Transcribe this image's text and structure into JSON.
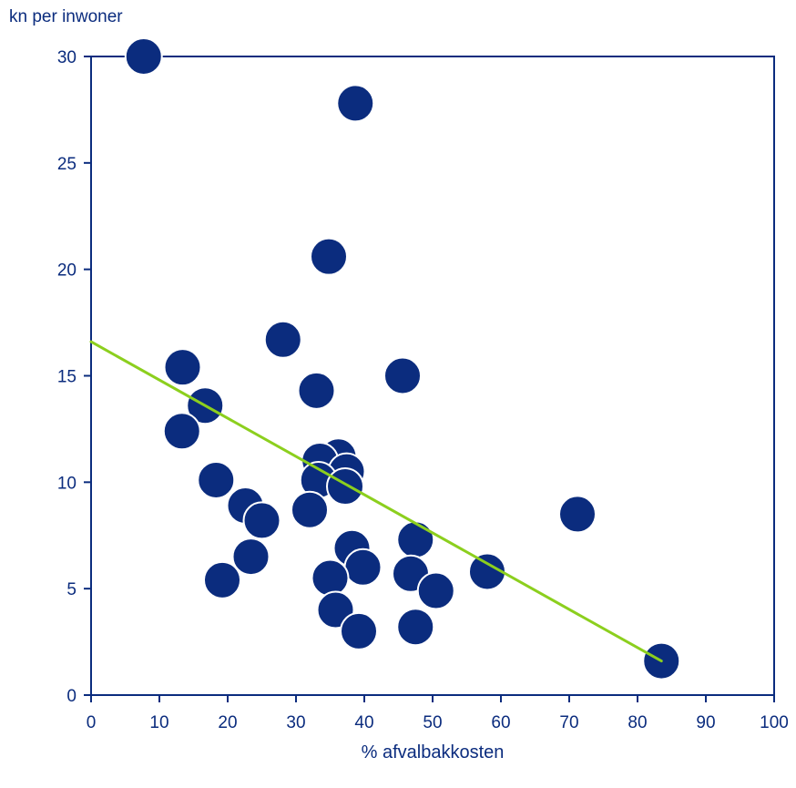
{
  "chart_data": {
    "type": "scatter",
    "title": "",
    "ylabel": "kn per inwoner",
    "xlabel": "% afvalbakkosten",
    "xlim": [
      0,
      100
    ],
    "ylim": [
      0,
      30
    ],
    "x_ticks": [
      0,
      10,
      20,
      30,
      40,
      50,
      60,
      70,
      80,
      90,
      100
    ],
    "y_ticks": [
      0,
      5,
      10,
      15,
      20,
      25,
      30
    ],
    "grid": false,
    "legend": "none",
    "colors": {
      "points": "#0b2c7e",
      "point_stroke": "#ffffff",
      "trendline": "#8ccf1e",
      "axis": "#0b2c7e",
      "text": "#0b2c7e"
    },
    "series": [
      {
        "points": [
          {
            "x": 7.7,
            "y": 30.0
          },
          {
            "x": 38.7,
            "y": 27.8
          },
          {
            "x": 34.8,
            "y": 20.6
          },
          {
            "x": 28.1,
            "y": 16.7
          },
          {
            "x": 13.4,
            "y": 15.4
          },
          {
            "x": 45.6,
            "y": 15.0
          },
          {
            "x": 33.0,
            "y": 14.3
          },
          {
            "x": 16.7,
            "y": 13.6
          },
          {
            "x": 13.3,
            "y": 12.4
          },
          {
            "x": 36.2,
            "y": 11.2
          },
          {
            "x": 33.5,
            "y": 11.0
          },
          {
            "x": 37.4,
            "y": 10.5
          },
          {
            "x": 33.3,
            "y": 10.1
          },
          {
            "x": 18.3,
            "y": 10.1
          },
          {
            "x": 37.2,
            "y": 9.8
          },
          {
            "x": 22.6,
            "y": 8.9
          },
          {
            "x": 32.0,
            "y": 8.7
          },
          {
            "x": 71.2,
            "y": 8.5
          },
          {
            "x": 25.0,
            "y": 8.2
          },
          {
            "x": 47.5,
            "y": 7.3
          },
          {
            "x": 38.2,
            "y": 6.9
          },
          {
            "x": 23.4,
            "y": 6.5
          },
          {
            "x": 39.8,
            "y": 6.0
          },
          {
            "x": 58.0,
            "y": 5.8
          },
          {
            "x": 46.8,
            "y": 5.7
          },
          {
            "x": 35.0,
            "y": 5.5
          },
          {
            "x": 19.2,
            "y": 5.4
          },
          {
            "x": 50.5,
            "y": 4.9
          },
          {
            "x": 35.8,
            "y": 4.0
          },
          {
            "x": 47.5,
            "y": 3.2
          },
          {
            "x": 39.2,
            "y": 3.0
          },
          {
            "x": 83.5,
            "y": 1.6
          }
        ]
      }
    ],
    "trendline": {
      "points": [
        {
          "x": 0,
          "y": 16.6
        },
        {
          "x": 83.5,
          "y": 1.6
        }
      ]
    }
  }
}
